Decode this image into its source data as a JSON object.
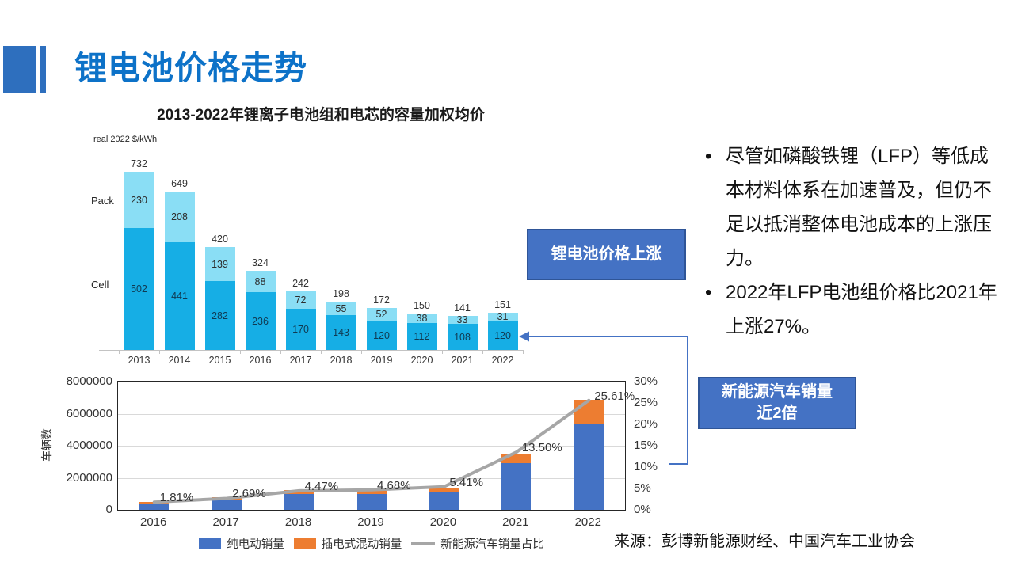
{
  "slide": {
    "title": "锂电池价格走势",
    "source": "来源：彭博新能源财经、中国汽车工业协会"
  },
  "bullets": [
    "尽管如磷酸铁锂（LFP）等低成本材料体系在加速普及，但仍不足以抵消整体电池成本的上涨压力。",
    "2022年LFP电池组价格比2021年上涨27%。"
  ],
  "callouts": {
    "battery_price": "锂电池价格上涨",
    "nev_line1": "新能源汽车销量",
    "nev_line2": "近2倍"
  },
  "colors": {
    "title_blue": "#0D72C8",
    "decor_blue": "#2E6FBE",
    "callout_fill": "#4472C4",
    "callout_border": "#2F5597",
    "connector": "#4472C4",
    "cell_bar": "#16AEE5",
    "pack_bar": "#8ADEF5",
    "bev_bar": "#4472C4",
    "phev_bar": "#ED7D31",
    "share_line": "#A6A6A6"
  },
  "chart_data": [
    {
      "type": "bar",
      "title": "2013-2022年锂离子电池组和电芯的容量加权均价",
      "unit_label": "real 2022 $/kWh",
      "categories": [
        "2013",
        "2014",
        "2015",
        "2016",
        "2017",
        "2018",
        "2019",
        "2020",
        "2021",
        "2022"
      ],
      "series": [
        {
          "name": "Cell",
          "color": "#16AEE5",
          "values": [
            502,
            441,
            282,
            236,
            170,
            143,
            120,
            112,
            108,
            120
          ]
        },
        {
          "name": "Pack",
          "color": "#8ADEF5",
          "values": [
            230,
            208,
            139,
            88,
            72,
            55,
            52,
            38,
            33,
            31
          ]
        }
      ],
      "totals": [
        732,
        649,
        420,
        324,
        242,
        198,
        172,
        150,
        141,
        151
      ],
      "stacked": true,
      "ylim": [
        0,
        800
      ],
      "grid": false,
      "legend_position": "none"
    },
    {
      "type": "bar",
      "title": "",
      "categories": [
        "2016",
        "2017",
        "2018",
        "2019",
        "2020",
        "2021",
        "2022"
      ],
      "ylabel": "车辆数",
      "series": [
        {
          "name": "纯电动销量",
          "type": "bar",
          "color": "#4472C4",
          "values": [
            400000,
            650000,
            980000,
            970000,
            1100000,
            2920000,
            5370000
          ]
        },
        {
          "name": "插电式混动销量",
          "type": "bar",
          "color": "#ED7D31",
          "values": [
            100000,
            130000,
            270000,
            230000,
            250000,
            600000,
            1520000
          ]
        },
        {
          "name": "新能源汽车销量占比",
          "type": "line",
          "color": "#A6A6A6",
          "values": [
            1.81,
            2.69,
            4.47,
            4.68,
            5.41,
            13.5,
            25.61
          ]
        }
      ],
      "line_labels": [
        "1.81%",
        "2.69%",
        "4.47%",
        "4.68%",
        "5.41%",
        "13.50%",
        "25.61%"
      ],
      "stacked": true,
      "grid": true,
      "y_left": {
        "max": 8000000,
        "ticks": [
          "0",
          "2000000",
          "4000000",
          "6000000",
          "8000000"
        ],
        "grid_values": [
          2000000,
          4000000,
          6000000
        ]
      },
      "y_right": {
        "max": 30,
        "ticks": [
          "0%",
          "5%",
          "10%",
          "15%",
          "20%",
          "25%",
          "30%"
        ]
      },
      "legend_position": "bottom",
      "legend": [
        {
          "label": "纯电动销量",
          "type": "swatch",
          "color": "#4472C4"
        },
        {
          "label": "插电式混动销量",
          "type": "swatch",
          "color": "#ED7D31"
        },
        {
          "label": "新能源汽车销量占比",
          "type": "line",
          "color": "#A6A6A6"
        }
      ]
    }
  ]
}
